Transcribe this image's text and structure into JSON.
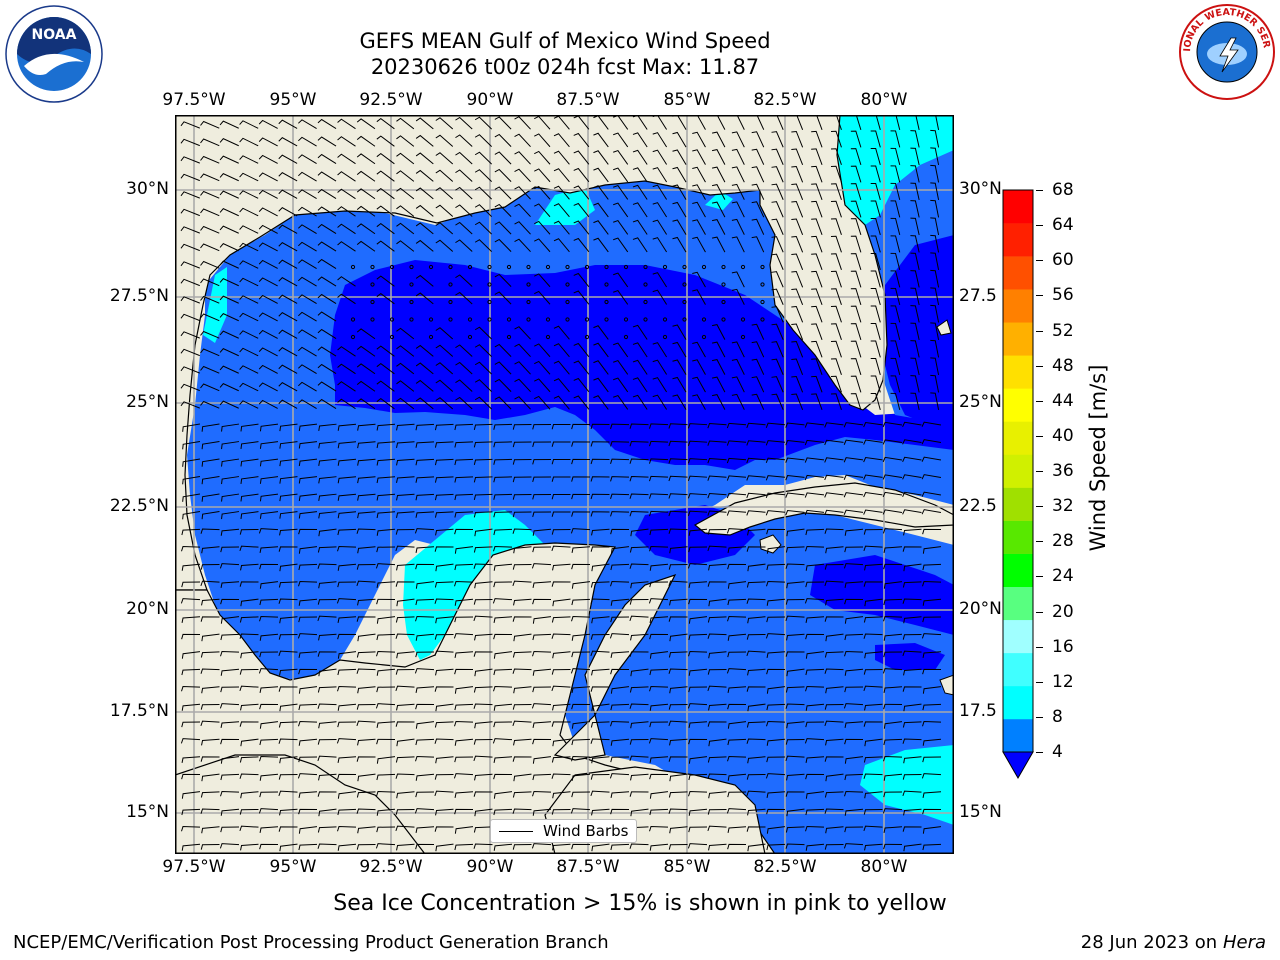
{
  "title_line1": "GEFS MEAN Gulf of Mexico Wind Speed",
  "title_line2": "20230626 t00z 024h fcst   Max: 11.87",
  "lon_labels": [
    "97.5°W",
    "95°W",
    "92.5°W",
    "90°W",
    "87.5°W",
    "85°W",
    "82.5°W",
    "80°W"
  ],
  "lat_labels_left": [
    "30°N",
    "27.5°N",
    "25°N",
    "22.5°N",
    "20°N",
    "17.5°N",
    "15°N"
  ],
  "lat_labels_right": [
    "30°N",
    "27.5",
    "25°N",
    "22.5",
    "20°N",
    "17.5",
    "15°N"
  ],
  "legend_label": "Wind Barbs",
  "colorbar": {
    "label": "Wind Speed [m/s]",
    "ticks": [
      "68",
      "64",
      "60",
      "56",
      "52",
      "48",
      "44",
      "40",
      "36",
      "32",
      "28",
      "24",
      "20",
      "16",
      "12",
      "8",
      "4"
    ],
    "colors": [
      "#0000ff",
      "#0080ff",
      "#00ffff",
      "#40ffff",
      "#a0ffff",
      "#58ff80",
      "#00ff00",
      "#58e800",
      "#a0e000",
      "#d0f000",
      "#e8f000",
      "#ffff00",
      "#ffe000",
      "#ffb000",
      "#ff8000",
      "#ff5000",
      "#ff2000",
      "#ff0000"
    ],
    "extend": "min"
  },
  "map_colors": {
    "land": "#efedde",
    "ocean_4_8": "#1f6cff",
    "ocean_lt4": "#0000ff",
    "ocean_8_12": "#00ffff"
  },
  "subtitle": "Sea Ice Concentration > 15% is shown in pink to yellow",
  "footer_left": "NCEP/EMC/Verification Post Processing Product Generation Branch",
  "footer_right_date": "28 Jun 2023 on",
  "footer_right_host": "Hera",
  "logo_left_text": "NOAA",
  "logo_right_text": "NATIONAL WEATHER SERVICE"
}
